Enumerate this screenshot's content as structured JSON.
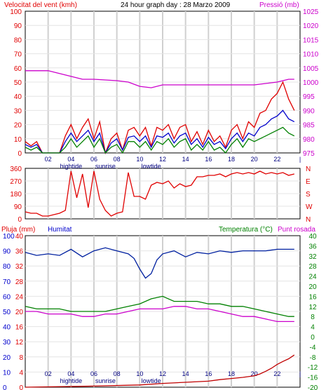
{
  "header": {
    "wind_speed_title": "Velocitat del vent (kmh)",
    "graph_title": "24 hour graph day : 28 Marzo 2009",
    "pressure_title": "Pressió (mb)"
  },
  "footer": {
    "rain_title": "Pluja (mm)",
    "humidity_title": "Humitat",
    "temperature_title": "Temperatura (°C)",
    "dewpoint_title": "Punt rosada"
  },
  "colors": {
    "wind": "#e00000",
    "gust_avg": "#0000cc",
    "wind_min": "#008000",
    "pressure": "#cc00cc",
    "humidity": "#0020a0",
    "temperature": "#008000",
    "dewpoint": "#cc00cc",
    "rain": "#c00000",
    "direction": "#e00000"
  },
  "chart_data": [
    {
      "type": "line",
      "name": "wind-pressure",
      "x_ticks": [
        "02",
        "04",
        "06",
        "08",
        "10",
        "12",
        "14",
        "16",
        "18",
        "20",
        "22",
        "|"
      ],
      "x_annotations": [
        {
          "label": "hightide",
          "x": 4
        },
        {
          "label": "sunrise",
          "x": 7
        },
        {
          "label": "lowtide",
          "x": 11
        }
      ],
      "y_left_ticks": [
        0,
        10,
        20,
        30,
        40,
        50,
        60,
        70,
        80,
        90,
        100
      ],
      "y_left_range": [
        0,
        100
      ],
      "y_right_ticks": [
        975,
        980,
        985,
        990,
        995,
        1000,
        1005,
        1010,
        1015,
        1020,
        1025
      ],
      "y_right_range": [
        975,
        1025
      ],
      "x_range": [
        0,
        24
      ],
      "series": [
        {
          "color_key": "pressure",
          "axis": "right",
          "x": [
            0,
            2,
            4,
            5,
            6,
            8,
            9,
            10,
            11,
            12,
            14,
            16,
            18,
            20,
            21,
            22,
            23,
            23.5
          ],
          "y": [
            1004,
            1004,
            1002,
            1001,
            1001,
            1000.5,
            1000,
            998.5,
            998,
            999,
            999,
            999,
            999,
            999,
            999.5,
            1000,
            1001,
            1001
          ]
        },
        {
          "color_key": "wind",
          "axis": "left",
          "x": [
            0,
            0.5,
            1,
            1.5,
            2,
            2.5,
            3,
            3.5,
            4,
            4.5,
            5,
            5.5,
            6,
            6.5,
            7,
            7.5,
            8,
            8.5,
            9,
            9.5,
            10,
            10.5,
            11,
            11.5,
            12,
            12.5,
            13,
            13.5,
            14,
            14.5,
            15,
            15.5,
            16,
            16.5,
            17,
            17.5,
            18,
            18.5,
            19,
            19.5,
            20,
            20.5,
            21,
            21.5,
            22,
            22.5,
            23,
            23.5
          ],
          "y": [
            8,
            5,
            8,
            0,
            0,
            0,
            0,
            12,
            20,
            10,
            18,
            24,
            10,
            22,
            0,
            10,
            14,
            2,
            16,
            18,
            12,
            18,
            5,
            18,
            16,
            20,
            10,
            18,
            20,
            8,
            15,
            6,
            16,
            8,
            12,
            4,
            16,
            20,
            10,
            22,
            18,
            28,
            30,
            38,
            42,
            50,
            38,
            30
          ]
        },
        {
          "color_key": "gust_avg",
          "axis": "left",
          "x": [
            0,
            0.5,
            1,
            1.5,
            2,
            2.5,
            3,
            3.5,
            4,
            4.5,
            5,
            5.5,
            6,
            6.5,
            7,
            7.5,
            8,
            8.5,
            9,
            9.5,
            10,
            10.5,
            11,
            11.5,
            12,
            12.5,
            13,
            13.5,
            14,
            14.5,
            15,
            15.5,
            16,
            16.5,
            17,
            17.5,
            18,
            18.5,
            19,
            19.5,
            20,
            20.5,
            21,
            21.5,
            22,
            22.5,
            23,
            23.5
          ],
          "y": [
            6,
            4,
            6,
            0,
            0,
            0,
            0,
            8,
            14,
            8,
            12,
            16,
            8,
            14,
            0,
            7,
            10,
            2,
            11,
            12,
            8,
            12,
            4,
            12,
            11,
            14,
            7,
            12,
            14,
            6,
            10,
            4,
            11,
            6,
            8,
            3,
            10,
            14,
            8,
            14,
            12,
            18,
            20,
            24,
            26,
            30,
            24,
            22
          ]
        },
        {
          "color_key": "wind_min",
          "axis": "left",
          "x": [
            0,
            0.5,
            1,
            1.5,
            2,
            2.5,
            3,
            3.5,
            4,
            4.5,
            5,
            5.5,
            6,
            6.5,
            7,
            7.5,
            8,
            8.5,
            9,
            9.5,
            10,
            10.5,
            11,
            11.5,
            12,
            12.5,
            13,
            13.5,
            14,
            14.5,
            15,
            15.5,
            16,
            16.5,
            17,
            17.5,
            18,
            18.5,
            19,
            19.5,
            20,
            20.5,
            21,
            21.5,
            22,
            22.5,
            23,
            23.5
          ],
          "y": [
            4,
            2,
            4,
            0,
            0,
            0,
            0,
            4,
            10,
            4,
            8,
            12,
            4,
            10,
            0,
            4,
            6,
            0,
            8,
            8,
            4,
            8,
            2,
            8,
            6,
            10,
            4,
            8,
            10,
            2,
            6,
            2,
            8,
            2,
            4,
            0,
            6,
            10,
            4,
            10,
            8,
            10,
            12,
            14,
            16,
            18,
            14,
            12
          ]
        }
      ]
    },
    {
      "type": "scatter",
      "name": "wind-direction",
      "y_ticks": [
        0,
        90,
        180,
        270,
        360
      ],
      "y_range": [
        0,
        360
      ],
      "y_right_labels": [
        "N",
        "W",
        "S",
        "E",
        "N"
      ],
      "x_range": [
        0,
        24
      ],
      "series": [
        {
          "color_key": "direction",
          "x": [
            0,
            0.5,
            1,
            1.5,
            2,
            2.5,
            3,
            3.5,
            4,
            4.5,
            5,
            5.5,
            6,
            6.5,
            7,
            7.5,
            8,
            8.5,
            9,
            9.5,
            10,
            10.5,
            11,
            11.5,
            12,
            12.5,
            13,
            13.5,
            14,
            14.5,
            15,
            15.5,
            16,
            16.5,
            17,
            17.5,
            18,
            18.5,
            19,
            19.5,
            20,
            20.5,
            21,
            21.5,
            22,
            22.5,
            23,
            23.5
          ],
          "y": [
            50,
            40,
            40,
            20,
            20,
            30,
            40,
            60,
            340,
            150,
            320,
            80,
            340,
            140,
            60,
            20,
            40,
            50,
            330,
            160,
            160,
            140,
            240,
            260,
            250,
            270,
            220,
            250,
            230,
            240,
            300,
            300,
            310,
            310,
            320,
            300,
            320,
            330,
            320,
            330,
            320,
            340,
            320,
            330,
            320,
            330,
            310,
            320
          ]
        }
      ]
    },
    {
      "type": "line",
      "name": "rain-humidity-temperature",
      "x_ticks": [
        "02",
        "04",
        "06",
        "08",
        "10",
        "12",
        "14",
        "16",
        "18",
        "20",
        "22",
        "|"
      ],
      "x_annotations": [
        {
          "label": "hightide",
          "x": 4
        },
        {
          "label": "sunrise",
          "x": 7
        },
        {
          "label": "lowtide",
          "x": 11
        }
      ],
      "y_left_hum_ticks": [
        0,
        10,
        20,
        30,
        40,
        50,
        60,
        70,
        80,
        90,
        100
      ],
      "y_left_rain_ticks": [
        0,
        4,
        8,
        12,
        16,
        20,
        24,
        28,
        32,
        36,
        40
      ],
      "y_right_ticks": [
        -20,
        -16,
        -12,
        -8,
        -4,
        0,
        4,
        8,
        12,
        16,
        20,
        24,
        28,
        32,
        36,
        40
      ],
      "y_right_range": [
        -20,
        40
      ],
      "x_range": [
        0,
        24
      ],
      "series": [
        {
          "color_key": "humidity",
          "axis": "humidity",
          "x": [
            0,
            1,
            2,
            3,
            4,
            5,
            6,
            7,
            8,
            9,
            9.5,
            10,
            10.5,
            11,
            11.5,
            12,
            13,
            14,
            15,
            16,
            17,
            18,
            19,
            20,
            21,
            22,
            23,
            23.5
          ],
          "y": [
            89,
            87,
            88,
            87,
            91,
            86,
            90,
            92,
            90,
            88,
            85,
            78,
            72,
            75,
            84,
            88,
            90,
            86,
            89,
            88,
            90,
            89,
            90,
            90,
            90,
            91,
            91,
            91
          ]
        },
        {
          "color_key": "temperature",
          "axis": "temp",
          "x": [
            0,
            1,
            2,
            3,
            4,
            5,
            6,
            7,
            8,
            9,
            10,
            11,
            12,
            13,
            14,
            15,
            16,
            17,
            18,
            19,
            20,
            21,
            22,
            23,
            23.5
          ],
          "y": [
            12,
            11,
            11,
            11,
            10,
            10,
            10,
            10,
            11,
            12,
            13,
            15,
            16,
            14,
            14,
            14,
            13,
            13,
            12,
            12,
            11,
            10,
            9,
            8,
            8
          ]
        },
        {
          "color_key": "dewpoint",
          "axis": "temp",
          "x": [
            0,
            1,
            2,
            3,
            4,
            5,
            6,
            7,
            8,
            9,
            10,
            11,
            12,
            13,
            14,
            15,
            16,
            17,
            18,
            19,
            20,
            21,
            22,
            23,
            23.5
          ],
          "y": [
            10,
            10,
            9,
            9,
            9,
            8,
            8,
            9,
            9,
            10,
            11,
            11,
            11,
            12,
            12,
            11,
            11,
            10,
            9,
            8,
            8,
            7,
            6,
            6,
            6
          ]
        },
        {
          "color_key": "rain",
          "axis": "rain",
          "x": [
            0,
            6,
            10,
            12,
            14,
            16,
            17,
            18,
            19,
            20,
            20.5,
            21,
            21.5,
            22,
            22.5,
            23,
            23.5
          ],
          "y": [
            0,
            0.3,
            0.6,
            1,
            1.3,
            1.6,
            2,
            2.3,
            2.6,
            3,
            3.5,
            4.2,
            5,
            6,
            6.8,
            7.5,
            8.5
          ]
        }
      ]
    }
  ]
}
